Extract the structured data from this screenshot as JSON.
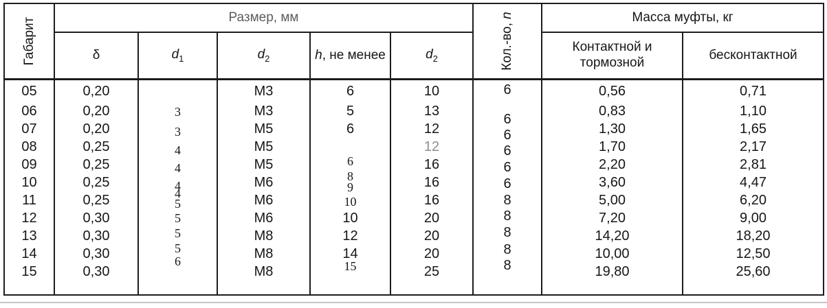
{
  "table": {
    "corner_header": "Габарит",
    "size_group_header": "Размер, мм",
    "qty_header_prefix": "Кол.-во, ",
    "qty_header_symbol": "n",
    "mass_group_header": "Масса муфты, кг",
    "sub_headers": {
      "delta": "δ",
      "d1_base": "d",
      "d1_sub": "1",
      "d2_base": "d",
      "d2_sub": "2",
      "h_symbol": "h",
      "h_rest": ", не менее",
      "d2b_base": "d",
      "d2b_sub": "2",
      "mass_contact_line1": "Контактной и",
      "mass_contact_line2": "тормозной",
      "mass_contactless": "бесконтактной"
    },
    "rows": [
      {
        "gabarit": "05",
        "delta": "0,20",
        "d1": "3",
        "d2": "M3",
        "h": "6",
        "d2b": "10",
        "n": "6",
        "mass_contact": "0,56",
        "mass_contactless": "0,71"
      },
      {
        "gabarit": "06",
        "delta": "0,20",
        "d1": "3",
        "d2": "M3",
        "h": "5",
        "d2b": "13",
        "n": "6",
        "mass_contact": "0,83",
        "mass_contactless": "1,10"
      },
      {
        "gabarit": "07",
        "delta": "0,20",
        "d1": "4",
        "d2": "M5",
        "h": "6",
        "d2b": "12",
        "n": "6",
        "mass_contact": "1,30",
        "mass_contactless": "1,65"
      },
      {
        "gabarit": "08",
        "delta": "0,25",
        "d1": "4",
        "d2": "M5",
        "h": "6",
        "d2b": "12",
        "n": "6",
        "mass_contact": "1,70",
        "mass_contactless": "2,17"
      },
      {
        "gabarit": "09",
        "delta": "0,25",
        "d1": "4",
        "d2": "M5",
        "h": "8",
        "d2b": "16",
        "n": "6",
        "mass_contact": "2,20",
        "mass_contactless": "2,81"
      },
      {
        "gabarit": "10",
        "delta": "0,25",
        "d1": "4",
        "d2": "M6",
        "h": "9",
        "d2b": "16",
        "n": "6",
        "mass_contact": "3,60",
        "mass_contactless": "4,47"
      },
      {
        "gabarit": "11",
        "delta": "0,25",
        "d1": "5",
        "d2": "M6",
        "h": "10",
        "d2b": "16",
        "n": "8",
        "mass_contact": "5,00",
        "mass_contactless": "6,20"
      },
      {
        "gabarit": "12",
        "delta": "0,30",
        "d1": "5",
        "d2": "M6",
        "h": "10",
        "d2b": "20",
        "n": "8",
        "mass_contact": "7,20",
        "mass_contactless": "9,00"
      },
      {
        "gabarit": "13",
        "delta": "0,30",
        "d1": "5",
        "d2": "M8",
        "h": "12",
        "d2b": "20",
        "n": "8",
        "mass_contact": "14,20",
        "mass_contactless": "18,20"
      },
      {
        "gabarit": "14",
        "delta": "0,30",
        "d1": "5",
        "d2": "M8",
        "h": "14",
        "d2b": "20",
        "n": "8",
        "mass_contact": "10,00",
        "mass_contactless": "12,50"
      },
      {
        "gabarit": "15",
        "delta": "0,30",
        "d1": "6",
        "d2": "M8",
        "h": "15",
        "d2b": "25",
        "n": "8",
        "mass_contact": "19,80",
        "mass_contactless": "25,60"
      }
    ]
  },
  "colors": {
    "text": "#161616",
    "group_header_gray": "#5c5c5c",
    "faded_value_gray": "#8e8e8e",
    "bottom_rule_gray": "#c4c4c4"
  }
}
